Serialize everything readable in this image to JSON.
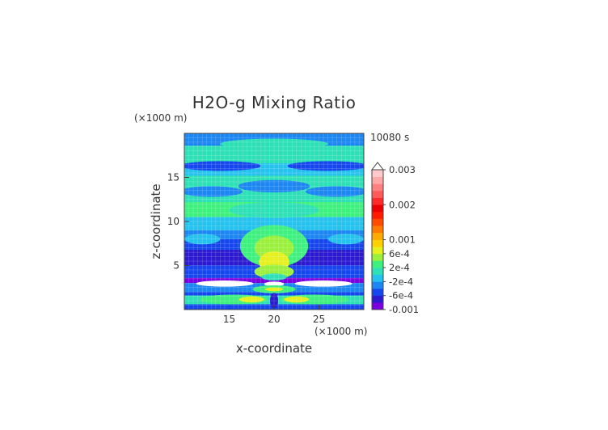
{
  "chart_data": {
    "type": "heatmap",
    "title": "H2O-g Mixing Ratio",
    "xlabel": "x-coordinate",
    "ylabel": "z-coordinate",
    "x_unit": "(×1000 m)",
    "y_unit": "(×1000 m)",
    "time_label": "10080 s",
    "xlim": [
      10,
      30
    ],
    "ylim": [
      0,
      20
    ],
    "x_ticks": [
      15,
      20,
      25
    ],
    "y_ticks": [
      5,
      10,
      15
    ],
    "grid": true,
    "colorbar": {
      "levels": [
        -0.001,
        -0.0008,
        -0.0006,
        -0.0004,
        -0.0002,
        0,
        0.0002,
        0.0004,
        0.0006,
        0.0008,
        0.001,
        0.0012,
        0.0014,
        0.0016,
        0.0018,
        0.002,
        0.0022,
        0.0024,
        0.0026,
        0.0028,
        0.003
      ],
      "colors": [
        "#7a00e0",
        "#2c1ad0",
        "#1646ee",
        "#1c86f2",
        "#26c2ee",
        "#2ee0b6",
        "#3ef07e",
        "#9af03c",
        "#e6f01e",
        "#ffd000",
        "#ffaa00",
        "#ff7a00",
        "#ff4a00",
        "#ff1a00",
        "#ea0000",
        "#ff2a2a",
        "#ff5a5a",
        "#ff8080",
        "#ffa8a8",
        "#ffcaca"
      ],
      "tick_labels": [
        {
          "value": 0.003,
          "text": "0.003"
        },
        {
          "value": 0.002,
          "text": "0.002"
        },
        {
          "value": 0.001,
          "text": "0.001"
        },
        {
          "value": 0.0006,
          "text": "6e-4"
        },
        {
          "value": 0.0002,
          "text": "2e-4"
        },
        {
          "value": -0.0002,
          "text": "-2e-4"
        },
        {
          "value": -0.0006,
          "text": "-6e-4"
        },
        {
          "value": -0.001,
          "text": "-0.001"
        }
      ]
    },
    "z_description": "horizontal bands of negative values (blue/purple) in lower 3-9 km, near-zero (green/cyan) above, positive plume (yellow) centered near x=20 from 4-8 km, white/high cells near z=3 km"
  }
}
